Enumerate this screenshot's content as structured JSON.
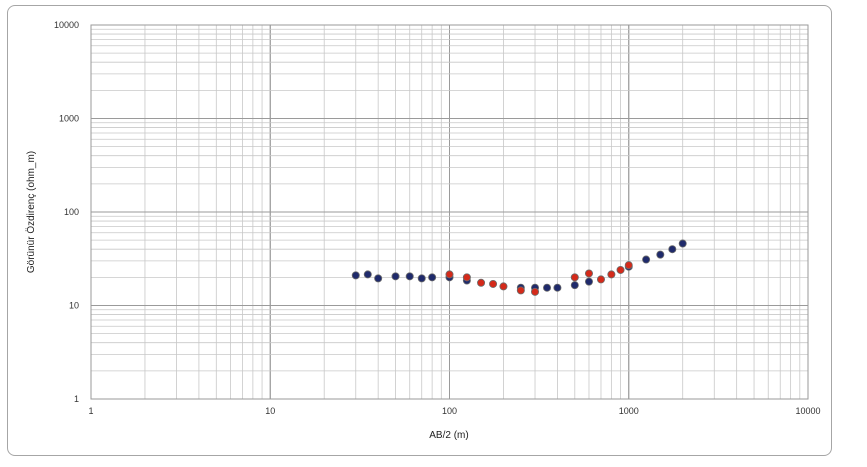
{
  "chart_data": {
    "type": "scatter",
    "xscale": "log",
    "yscale": "log",
    "xlim": [
      1,
      10000
    ],
    "ylim": [
      1,
      10000
    ],
    "xlabel": "AB/2 (m)",
    "ylabel": "Görünür Özdirenç (ohm_m)",
    "x_ticks": [
      "1",
      "10",
      "100",
      "1000",
      "10000"
    ],
    "y_ticks": [
      "1",
      "10",
      "100",
      "1000",
      "10000"
    ],
    "grid": true,
    "minor_grid": true,
    "series": [
      {
        "color": "#1f2a6b",
        "x": [
          30,
          35,
          40,
          50,
          60,
          70,
          80,
          100,
          125,
          250,
          300,
          350,
          400,
          500,
          600,
          1000,
          1250,
          1500,
          1750,
          2000
        ],
        "y": [
          21,
          21.5,
          19.5,
          20.5,
          20.5,
          19.5,
          20,
          20,
          18.5,
          15.5,
          15.5,
          15.5,
          15.5,
          16.5,
          18,
          26,
          31,
          35,
          40,
          46
        ]
      },
      {
        "color": "#d42a1a",
        "x": [
          100,
          125,
          150,
          175,
          200,
          250,
          300,
          500,
          600,
          700,
          800,
          900,
          1000
        ],
        "y": [
          21.5,
          20,
          17.5,
          17,
          16,
          14.5,
          14,
          20,
          22,
          19,
          21.5,
          24,
          27
        ]
      }
    ]
  }
}
